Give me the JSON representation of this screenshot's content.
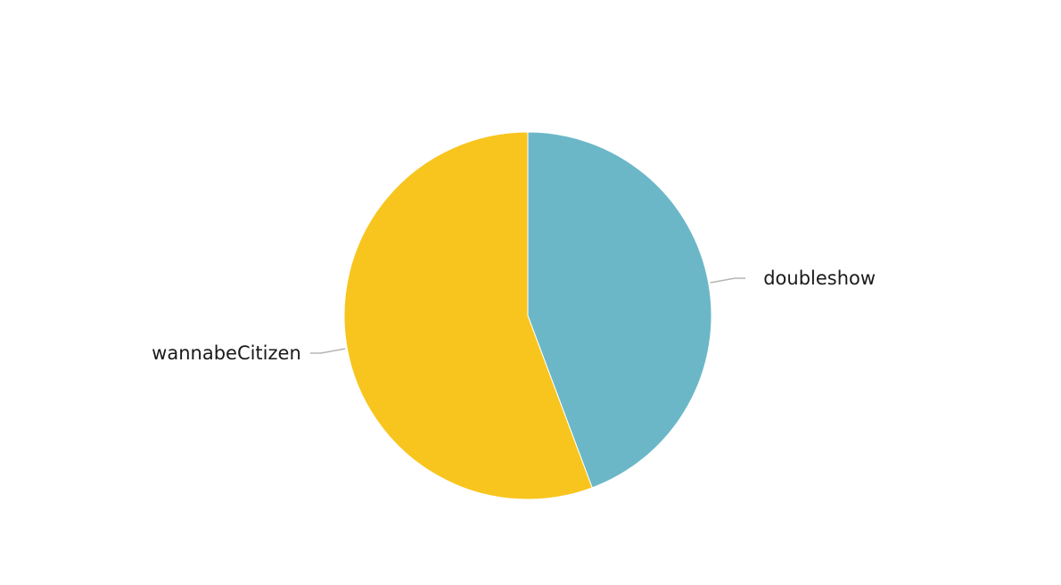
{
  "chart_data": {
    "type": "pie",
    "title": "",
    "slices": [
      {
        "label": "doubleshow",
        "value": 44.3,
        "color": "#6bb7c8"
      },
      {
        "label": "wannabeCitizen",
        "value": 55.7,
        "color": "#f8c51f"
      }
    ],
    "start_angle": "12 o'clock",
    "direction": "clockwise",
    "legend": "none"
  }
}
